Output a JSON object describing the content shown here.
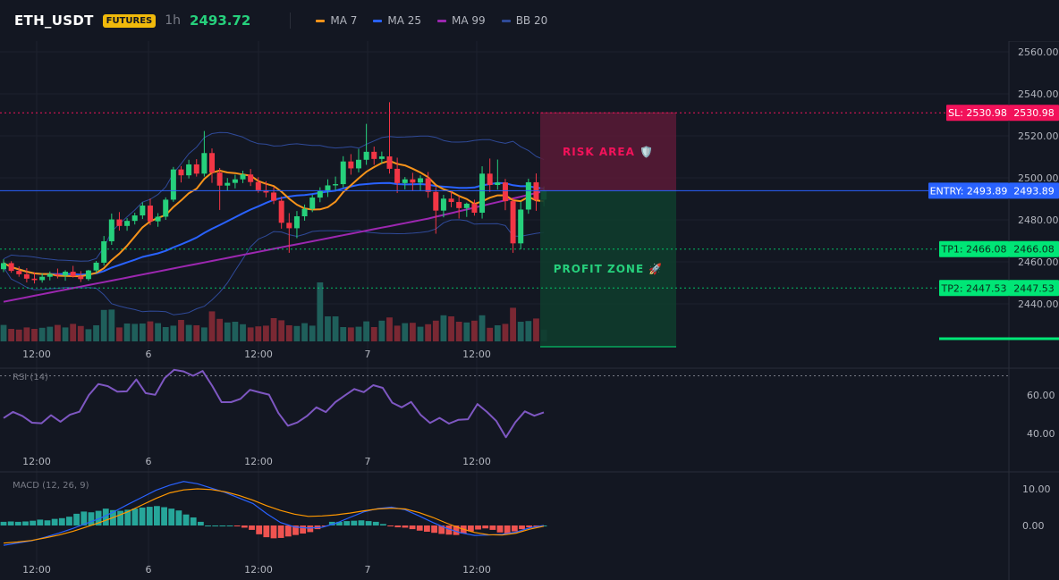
{
  "header": {
    "symbol": "ETH_USDT",
    "badge": "FUTURES",
    "timeframe": "1h",
    "last_price": "2493.72",
    "legend": [
      {
        "label": "MA 7",
        "color": "#f7931a"
      },
      {
        "label": "MA 25",
        "color": "#2962ff"
      },
      {
        "label": "MA 99",
        "color": "#9c27b0"
      },
      {
        "label": "BB 20",
        "color": "#2f4a99"
      }
    ]
  },
  "colors": {
    "up": "#26d07c",
    "down": "#f23645",
    "vol_up": "#1f5f5b",
    "vol_down": "#7a2833",
    "ma7": "#f7931a",
    "ma25": "#2962ff",
    "ma99": "#9c27b0",
    "bb": "#2f4a99",
    "rsi": "#7e57c2",
    "macd": "#2962ff",
    "signal": "#ff9800",
    "sl": "#f2125a",
    "tp": "#00e676",
    "entry": "#2962ff"
  },
  "trade": {
    "risk_label": "RISK AREA 🛡️",
    "profit_label": "PROFIT ZONE 🚀",
    "sl_tag": "SL: 2530.98",
    "sl_value": "2530.98",
    "entry_tag": "ENTRY: 2493.89",
    "entry_value": "2493.89",
    "tp1_tag": "TP1: 2466.08",
    "tp1_value": "2466.08",
    "tp2_tag": "TP2: 2447.53",
    "tp2_value": "2447.53"
  },
  "chart_data": [
    {
      "type": "candlestick",
      "price_axis_ticks": [
        "2560.00",
        "2540.00",
        "2520.00",
        "2500.00",
        "2480.00",
        "2460.00",
        "2440.00"
      ],
      "ylim": [
        2430,
        2566
      ],
      "time_axis_ticks": [
        "12:00",
        "6",
        "12:00",
        "7",
        "12:00"
      ],
      "candles": [
        [
          2456.5,
          2461.2,
          2455.1,
          2459.4
        ],
        [
          2459.4,
          2460.3,
          2454.8,
          2455.7
        ],
        [
          2455.7,
          2457.8,
          2452.9,
          2454.1
        ],
        [
          2454.1,
          2457.0,
          2450.2,
          2452.0
        ],
        [
          2452.0,
          2455.0,
          2449.7,
          2451.3
        ],
        [
          2451.3,
          2454.5,
          2450.1,
          2452.9
        ],
        [
          2452.9,
          2455.4,
          2451.2,
          2454.2
        ],
        [
          2454.2,
          2456.8,
          2452.1,
          2453.5
        ],
        [
          2453.5,
          2456.0,
          2451.0,
          2455.3
        ],
        [
          2455.3,
          2458.1,
          2452.5,
          2453.1
        ],
        [
          2453.1,
          2455.6,
          2450.4,
          2451.8
        ],
        [
          2451.8,
          2456.2,
          2451.0,
          2455.9
        ],
        [
          2455.9,
          2460.4,
          2454.7,
          2459.6
        ],
        [
          2459.6,
          2472.3,
          2458.2,
          2469.8
        ],
        [
          2469.8,
          2483.0,
          2468.1,
          2480.2
        ],
        [
          2480.2,
          2483.7,
          2474.9,
          2477.1
        ],
        [
          2477.1,
          2480.8,
          2474.8,
          2479.5
        ],
        [
          2479.5,
          2483.4,
          2477.8,
          2482.1
        ],
        [
          2482.1,
          2488.3,
          2480.4,
          2486.8
        ],
        [
          2486.8,
          2490.1,
          2477.5,
          2479.3
        ],
        [
          2479.3,
          2483.2,
          2476.7,
          2481.5
        ],
        [
          2481.5,
          2490.7,
          2480.0,
          2489.6
        ],
        [
          2489.6,
          2505.2,
          2488.6,
          2504.0
        ],
        [
          2504.0,
          2505.6,
          2497.8,
          2501.2
        ],
        [
          2501.2,
          2508.6,
          2499.7,
          2506.4
        ],
        [
          2506.4,
          2508.9,
          2500.6,
          2502.0
        ],
        [
          2502.0,
          2522.3,
          2500.6,
          2511.8
        ],
        [
          2511.8,
          2514.0,
          2497.6,
          2502.5
        ],
        [
          2502.5,
          2504.7,
          2484.7,
          2496.3
        ],
        [
          2496.3,
          2499.9,
          2494.0,
          2497.6
        ],
        [
          2497.6,
          2501.5,
          2495.0,
          2499.3
        ],
        [
          2499.3,
          2503.4,
          2497.5,
          2501.6
        ],
        [
          2501.6,
          2504.2,
          2496.1,
          2498.0
        ],
        [
          2498.0,
          2500.3,
          2492.9,
          2494.1
        ],
        [
          2494.1,
          2498.4,
          2490.7,
          2493.0
        ],
        [
          2493.0,
          2495.6,
          2487.5,
          2489.1
        ],
        [
          2489.1,
          2491.0,
          2475.8,
          2478.6
        ],
        [
          2478.6,
          2483.2,
          2464.3,
          2476.0
        ],
        [
          2476.0,
          2484.2,
          2471.3,
          2481.7
        ],
        [
          2481.7,
          2487.3,
          2479.6,
          2485.2
        ],
        [
          2485.2,
          2491.9,
          2483.7,
          2490.6
        ],
        [
          2490.6,
          2495.5,
          2488.4,
          2493.7
        ],
        [
          2493.7,
          2499.3,
          2490.9,
          2496.4
        ],
        [
          2496.4,
          2500.6,
          2494.0,
          2497.0
        ],
        [
          2497.0,
          2510.3,
          2495.4,
          2507.8
        ],
        [
          2507.8,
          2511.3,
          2501.5,
          2504.5
        ],
        [
          2504.5,
          2513.8,
          2502.6,
          2508.6
        ],
        [
          2508.6,
          2525.7,
          2506.2,
          2512.4
        ],
        [
          2512.4,
          2514.9,
          2506.2,
          2509.0
        ],
        [
          2509.0,
          2512.5,
          2506.9,
          2510.2
        ],
        [
          2510.2,
          2536.0,
          2502.0,
          2504.3
        ],
        [
          2504.3,
          2509.6,
          2492.8,
          2497.5
        ],
        [
          2497.5,
          2500.4,
          2494.5,
          2499.3
        ],
        [
          2499.3,
          2502.4,
          2493.8,
          2497.7
        ],
        [
          2497.7,
          2501.2,
          2493.8,
          2499.8
        ],
        [
          2499.8,
          2502.8,
          2490.5,
          2493.3
        ],
        [
          2493.3,
          2495.6,
          2473.4,
          2484.4
        ],
        [
          2484.4,
          2491.9,
          2481.2,
          2490.1
        ],
        [
          2490.1,
          2493.8,
          2486.0,
          2488.5
        ],
        [
          2488.5,
          2491.5,
          2480.6,
          2485.6
        ],
        [
          2485.6,
          2488.2,
          2481.4,
          2487.7
        ],
        [
          2487.7,
          2489.6,
          2482.0,
          2483.4
        ],
        [
          2483.4,
          2505.5,
          2480.6,
          2502.0
        ],
        [
          2502.0,
          2509.2,
          2493.3,
          2496.6
        ],
        [
          2496.6,
          2508.7,
          2494.4,
          2497.8
        ],
        [
          2497.8,
          2499.5,
          2484.6,
          2488.9
        ],
        [
          2488.9,
          2490.5,
          2464.3,
          2468.8
        ],
        [
          2468.8,
          2488.6,
          2466.0,
          2484.9
        ],
        [
          2484.9,
          2499.6,
          2482.9,
          2497.9
        ],
        [
          2497.9,
          2502.1,
          2484.3,
          2489.6
        ],
        [
          2489.6,
          2495.9,
          2486.4,
          2493.7
        ]
      ],
      "volume": [
        46,
        35,
        33,
        39,
        35,
        38,
        41,
        46,
        39,
        49,
        43,
        34,
        45,
        88,
        89,
        39,
        50,
        49,
        50,
        56,
        51,
        40,
        44,
        60,
        46,
        45,
        39,
        84,
        63,
        53,
        55,
        48,
        39,
        42,
        44,
        65,
        59,
        45,
        43,
        51,
        44,
        165,
        70,
        70,
        40,
        39,
        41,
        56,
        40,
        58,
        67,
        44,
        51,
        52,
        41,
        48,
        58,
        73,
        70,
        55,
        53,
        58,
        73,
        38,
        45,
        49,
        94,
        55,
        57,
        64,
        33
      ]
    },
    {
      "type": "line",
      "title": "RSI (14)",
      "axis_ticks": [
        "60.00",
        "40.00"
      ],
      "ylim": [
        30,
        75
      ],
      "values": [
        48.0,
        51.2,
        49.0,
        45.6,
        45.3,
        49.5,
        46.1,
        49.7,
        51.3,
        60.0,
        65.7,
        64.6,
        61.7,
        61.9,
        68.1,
        61.0,
        60.1,
        68.8,
        73.1,
        72.3,
        70.0,
        72.5,
        64.9,
        56.3,
        56.3,
        58.0,
        62.7,
        61.4,
        60.2,
        50.6,
        44.0,
        45.7,
        49.0,
        53.6,
        51.1,
        56.3,
        59.7,
        63.1,
        61.5,
        65.1,
        63.7,
        56.0,
        53.6,
        56.4,
        49.7,
        45.5,
        48.1,
        45.1,
        47.1,
        47.4,
        55.3,
        51.2,
        46.4,
        38.0,
        45.8,
        51.5,
        49.2,
        51.0
      ],
      "time_axis_ticks": [
        "12:00",
        "6",
        "12:00",
        "7",
        "12:00"
      ]
    },
    {
      "type": "bar+line",
      "title": "MACD (12, 26, 9)",
      "axis_ticks": [
        "10.00",
        "0.00"
      ],
      "ylim": [
        -7,
        12
      ],
      "histogram": [
        1.0,
        1.1,
        1.0,
        1.1,
        1.3,
        1.6,
        1.4,
        1.8,
        2.0,
        2.4,
        3.2,
        3.8,
        3.6,
        4.0,
        4.6,
        4.2,
        4.0,
        4.3,
        4.6,
        4.9,
        5.1,
        5.3,
        5.0,
        4.6,
        4.1,
        3.0,
        2.2,
        1.0,
        0.0,
        0,
        0,
        0,
        -0.2,
        -0.6,
        -1.2,
        -2.4,
        -3.2,
        -3.5,
        -3.4,
        -3.0,
        -2.6,
        -2.2,
        -1.8,
        -1.0,
        -0.2,
        1.0,
        1.0,
        1.2,
        1.3,
        1.4,
        1.2,
        1.0,
        0.4,
        -0.2,
        -0.5,
        -0.6,
        -1.0,
        -1.4,
        -1.7,
        -2.0,
        -2.3,
        -2.5,
        -2.6,
        -2.2,
        -1.6,
        -1.1,
        -0.8,
        -1.2,
        -1.9,
        -2.2,
        -1.6,
        -1.0,
        -0.5,
        -0.2,
        0.0
      ],
      "macd": [
        -5.4,
        -4.8,
        -4.2,
        -3.2,
        -2.1,
        -0.8,
        0.6,
        2.0,
        3.8,
        5.8,
        7.7,
        9.6,
        11.0,
        12.0,
        11.4,
        10.2,
        9.0,
        7.5,
        6.0,
        3.2,
        0.8,
        -0.4,
        -0.7,
        -0.5,
        0.6,
        2.2,
        3.7,
        4.6,
        5.0,
        4.3,
        2.6,
        0.8,
        -0.8,
        -2.0,
        -2.7,
        -2.6,
        -2.4,
        -1.8,
        -0.6,
        0.0
      ],
      "signal": [
        -4.8,
        -4.5,
        -4.1,
        -3.4,
        -2.6,
        -1.6,
        -0.4,
        0.9,
        2.3,
        3.8,
        5.6,
        7.4,
        8.9,
        9.7,
        10.0,
        9.8,
        9.2,
        8.2,
        6.9,
        5.4,
        4.1,
        3.1,
        2.5,
        2.6,
        2.9,
        3.4,
        4.0,
        4.5,
        4.7,
        4.5,
        3.5,
        2.2,
        0.6,
        -0.8,
        -1.9,
        -2.5,
        -2.6,
        -2.1,
        -1.0,
        -0.2
      ],
      "time_axis_ticks": [
        "12:00",
        "6",
        "12:00",
        "7",
        "12:00"
      ]
    }
  ]
}
